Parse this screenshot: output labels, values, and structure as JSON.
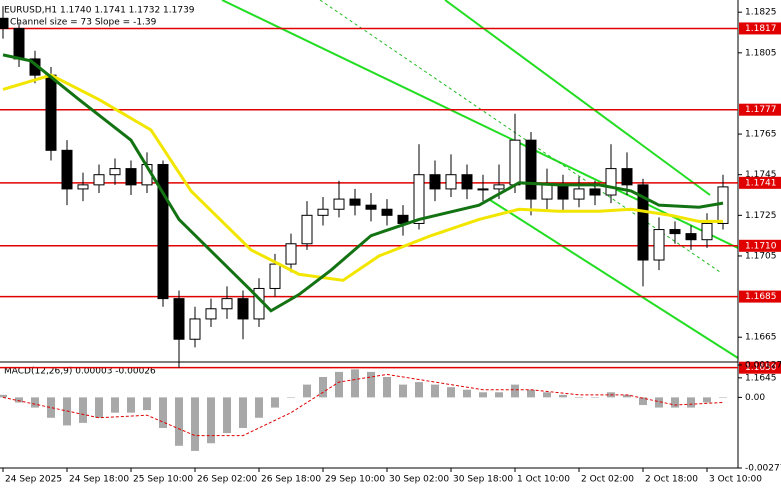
{
  "chart_data": [
    {
      "type": "candlestick",
      "title": "EURUSD,H1  1.1740 1.1741 1.1732 1.1739",
      "subtitle": "Channel size = 73 Slope = -1.39",
      "x": [
        0,
        4,
        8,
        12,
        16,
        20,
        24,
        28,
        32,
        36,
        40,
        44,
        48,
        52,
        56,
        60,
        64,
        68,
        72,
        76,
        80,
        84,
        88,
        92,
        96,
        100,
        104,
        108,
        112,
        116,
        120,
        124,
        128,
        132,
        136,
        140,
        144,
        148,
        152,
        156,
        160,
        164,
        168,
        172,
        176,
        180
      ],
      "open": [
        1.1822,
        1.1817,
        1.1802,
        1.1794,
        1.1757,
        1.1738,
        1.174,
        1.1745,
        1.1748,
        1.174,
        1.175,
        1.1684,
        1.1664,
        1.1674,
        1.1679,
        1.1684,
        1.1674,
        1.1689,
        1.1701,
        1.1711,
        1.1725,
        1.1728,
        1.1733,
        1.173,
        1.1728,
        1.1725,
        1.1721,
        1.1745,
        1.1738,
        1.1745,
        1.1738,
        1.1738,
        1.174,
        1.1762,
        1.1733,
        1.174,
        1.1733,
        1.1738,
        1.1735,
        1.1748,
        1.174,
        1.1703,
        1.1718,
        1.1716,
        1.1713,
        1.1721
      ],
      "high": [
        1.1828,
        1.182,
        1.1806,
        1.1798,
        1.1762,
        1.1746,
        1.175,
        1.1753,
        1.1752,
        1.1756,
        1.1752,
        1.1688,
        1.168,
        1.1684,
        1.169,
        1.1688,
        1.1694,
        1.1706,
        1.1716,
        1.1732,
        1.1734,
        1.1742,
        1.1738,
        1.1736,
        1.1733,
        1.173,
        1.176,
        1.1752,
        1.1755,
        1.175,
        1.1745,
        1.175,
        1.1775,
        1.1766,
        1.1748,
        1.1745,
        1.1744,
        1.1742,
        1.176,
        1.1756,
        1.1743,
        1.1724,
        1.1722,
        1.172,
        1.1726,
        1.1745
      ],
      "low": [
        1.1812,
        1.1798,
        1.179,
        1.1752,
        1.173,
        1.1732,
        1.1736,
        1.174,
        1.1735,
        1.1736,
        1.168,
        1.165,
        1.166,
        1.167,
        1.1674,
        1.1664,
        1.167,
        1.1685,
        1.1697,
        1.1708,
        1.172,
        1.1724,
        1.1725,
        1.1722,
        1.172,
        1.1715,
        1.1718,
        1.1732,
        1.1734,
        1.1733,
        1.1732,
        1.1733,
        1.1736,
        1.1725,
        1.1728,
        1.1727,
        1.1729,
        1.173,
        1.1731,
        1.1735,
        1.169,
        1.1698,
        1.1711,
        1.1708,
        1.1709,
        1.1718
      ],
      "close": [
        1.1817,
        1.1802,
        1.1794,
        1.1757,
        1.1738,
        1.174,
        1.1745,
        1.1748,
        1.174,
        1.175,
        1.1684,
        1.1664,
        1.1674,
        1.1679,
        1.1684,
        1.1674,
        1.1689,
        1.1701,
        1.1711,
        1.1725,
        1.1728,
        1.1733,
        1.173,
        1.1728,
        1.1725,
        1.1721,
        1.1745,
        1.1738,
        1.1745,
        1.1738,
        1.1738,
        1.174,
        1.1762,
        1.1733,
        1.174,
        1.1733,
        1.1738,
        1.1735,
        1.1748,
        1.174,
        1.1703,
        1.1718,
        1.1716,
        1.1713,
        1.1721,
        1.1739
      ],
      "series": [
        {
          "color": "#f2e600",
          "x": [
            0,
            12,
            24,
            37,
            47,
            62,
            74,
            85,
            94,
            107,
            119,
            129,
            139,
            149,
            157,
            167,
            174,
            180
          ],
          "values": [
            1.1787,
            1.1794,
            1.1782,
            1.1767,
            1.1737,
            1.1708,
            1.1696,
            1.1693,
            1.1705,
            1.1715,
            1.1723,
            1.1728,
            1.1727,
            1.1727,
            1.1728,
            1.1725,
            1.1722,
            1.1722
          ]
        },
        {
          "color": "#137313",
          "x": [
            0,
            7,
            19,
            32,
            44,
            62,
            67,
            74,
            82,
            92,
            104,
            119,
            129,
            139,
            149,
            157,
            164,
            174,
            180
          ],
          "values": [
            1.1804,
            1.1801,
            1.1782,
            1.1762,
            1.1723,
            1.1688,
            1.1678,
            1.1686,
            1.1698,
            1.1715,
            1.1723,
            1.173,
            1.1741,
            1.174,
            1.174,
            1.1737,
            1.173,
            1.1729,
            1.1731
          ]
        }
      ],
      "levels": [
        1.1817,
        1.1777,
        1.1741,
        {
          "value": 1.171,
          "label": "1.1710"
        },
        1.1685,
        {
          "value": 1.165,
          "label": "1.1650"
        }
      ],
      "level_color": "#e00000",
      "xlim": [
        -0.75,
        183.75
      ],
      "ylim": [
        1.164,
        1.1831
      ],
      "yticks": [
        1.1825,
        1.1805,
        1.1765,
        1.1745,
        1.1725,
        1.1705,
        1.1665,
        1.1645
      ],
      "xticks": [
        {
          "value": 0,
          "label": "24 Sep 2025"
        },
        {
          "value": 16,
          "label": "24 Sep 18:00"
        },
        {
          "value": 32,
          "label": "25 Sep 10:00"
        },
        {
          "value": 48,
          "label": "26 Sep 02:00"
        },
        {
          "value": 64,
          "label": "26 Sep 18:00"
        },
        {
          "value": 80,
          "label": "29 Sep 10:00"
        },
        {
          "value": 96,
          "label": "30 Sep 02:00"
        },
        {
          "value": 112,
          "label": "30 Sep 18:00"
        },
        {
          "value": 128,
          "label": "1 Oct 10:00"
        },
        {
          "value": 144,
          "label": "2 Oct 02:00"
        },
        {
          "value": 160,
          "label": "2 Oct 18:00"
        },
        {
          "value": 176,
          "label": "3 Oct 10:00"
        }
      ]
    },
    {
      "type": "macd",
      "title": "MACD(12,26,9) 0.00003 -0.00026",
      "x": [
        0,
        4,
        8,
        12,
        16,
        20,
        24,
        28,
        32,
        36,
        40,
        44,
        48,
        52,
        56,
        60,
        64,
        68,
        72,
        76,
        80,
        84,
        88,
        92,
        96,
        100,
        104,
        108,
        112,
        116,
        120,
        124,
        128,
        132,
        136,
        140,
        144,
        148,
        152,
        156,
        160,
        164,
        168,
        172,
        176,
        180
      ],
      "values": [
        0.0001,
        -0.0002,
        -0.0004,
        -0.0008,
        -0.0011,
        -0.001,
        -0.0008,
        -0.0006,
        -0.0006,
        -0.0005,
        -0.0012,
        -0.0019,
        -0.0021,
        -0.0018,
        -0.0014,
        -0.0012,
        -0.0008,
        -0.0004,
        0,
        0.0005,
        0.0008,
        0.001,
        0.0011,
        0.001,
        0.0008,
        0.0005,
        0.0006,
        0.0005,
        0.0004,
        0.0003,
        0.0002,
        0.0002,
        0.0005,
        0.0003,
        0.0002,
        0.0001,
        0,
        0,
        0.0002,
        0.0001,
        -0.0003,
        -0.0004,
        -0.0004,
        -0.0004,
        -0.0002,
        0
      ],
      "color": "#a8a8a8",
      "signal": {
        "color": "#e00000",
        "x": [
          0,
          12,
          24,
          36,
          48,
          60,
          72,
          84,
          96,
          108,
          120,
          132,
          144,
          156,
          168,
          180
        ],
        "values": [
          0,
          -0.0004,
          -0.0008,
          -0.0007,
          -0.0015,
          -0.0015,
          -0.0006,
          0.0006,
          0.0009,
          0.0006,
          0.0003,
          0.0003,
          0.0001,
          0.0001,
          -0.0003,
          -0.0002
        ]
      },
      "ylim": [
        -0.00277,
        0.00127
      ],
      "yticks": [
        0.00127,
        {
          "value": 0,
          "label": "0.00"
        },
        -0.00277
      ]
    }
  ]
}
